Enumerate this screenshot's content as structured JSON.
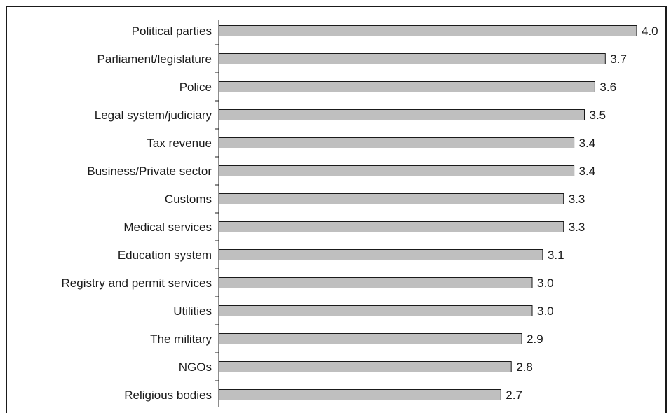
{
  "chart_data": {
    "type": "bar",
    "orientation": "horizontal",
    "categories": [
      "Political parties",
      "Parliament/legislature",
      "Police",
      "Legal system/judiciary",
      "Tax revenue",
      "Business/Private sector",
      "Customs",
      "Medical services",
      "Education system",
      "Registry and permit services",
      "Utilities",
      "The military",
      "NGOs",
      "Religious bodies"
    ],
    "values": [
      4.0,
      3.7,
      3.6,
      3.5,
      3.4,
      3.4,
      3.3,
      3.3,
      3.1,
      3.0,
      3.0,
      2.9,
      2.8,
      2.7
    ],
    "value_labels": [
      "4.0",
      "3.7",
      "3.6",
      "3.5",
      "3.4",
      "3.4",
      "3.3",
      "3.3",
      "3.1",
      "3.0",
      "3.0",
      "2.9",
      "2.8",
      "2.7"
    ],
    "title": "",
    "xlabel": "",
    "ylabel": "",
    "xlim": [
      0,
      4.0
    ],
    "grid": false,
    "legend": "none",
    "colors": {
      "bar_fill": "#bfbfbf",
      "bar_stroke": "#1a1a1a",
      "text": "#1a1a1a"
    }
  }
}
